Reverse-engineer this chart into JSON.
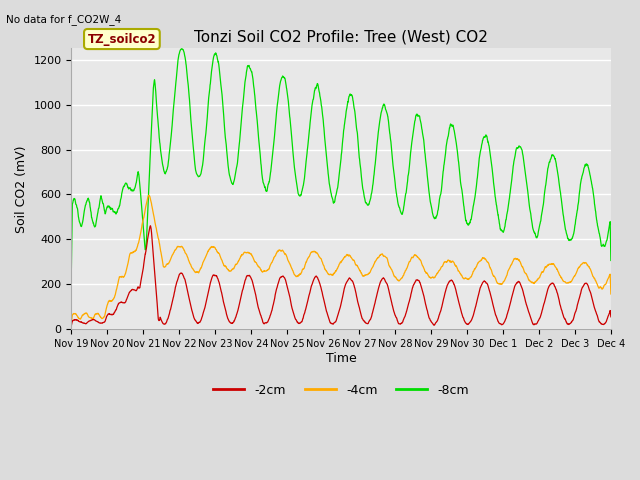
{
  "title": "Tonzi Soil CO2 Profile: Tree (West) CO2",
  "subtitle": "No data for f_CO2W_4",
  "ylabel": "Soil CO2 (mV)",
  "xlabel": "Time",
  "legend_label": "TZ_soilco2",
  "series_labels": [
    "-2cm",
    "-4cm",
    "-8cm"
  ],
  "series_colors": [
    "#cc0000",
    "#ffaa00",
    "#00dd00"
  ],
  "ylim": [
    0,
    1250
  ],
  "yticks": [
    0,
    200,
    400,
    600,
    800,
    1000,
    1200
  ],
  "bg_color": "#dcdcdc",
  "plot_bg_color": "#e8e8e8",
  "x_tick_labels": [
    "Nov 19",
    "Nov 20",
    "Nov 21",
    "Nov 22",
    "Nov 23",
    "Nov 24",
    "Nov 25",
    "Nov 26",
    "Nov 27",
    "Nov 28",
    "Nov 29",
    "Nov 30",
    "Dec 1",
    "Dec 2",
    "Dec 3",
    "Dec 4"
  ],
  "num_days": 16,
  "figsize": [
    6.4,
    4.8
  ],
  "dpi": 100
}
